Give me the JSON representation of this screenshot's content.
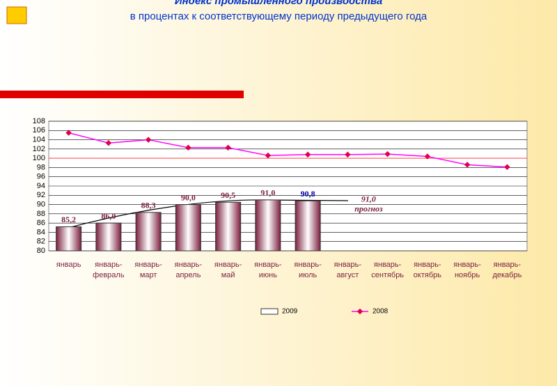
{
  "chart_data": {
    "type": "bar_line",
    "title": "Индекс промышленного производства",
    "subtitle": "в процентах к соответствующему периоду предыдущего года",
    "categories": [
      "январь",
      "январь-февраль",
      "январь-март",
      "январь-апрель",
      "январь-май",
      "январь-июнь",
      "январь-июль",
      "январь-август",
      "январь-сентябрь",
      "январь-октябрь",
      "январь-ноябрь",
      "январь-декабрь"
    ],
    "series": [
      {
        "name": "2009",
        "type": "bar",
        "color": "#7a1f3d",
        "values": [
          85.2,
          86.0,
          88.3,
          90.0,
          90.5,
          91.0,
          90.8,
          null,
          null,
          null,
          null,
          null
        ],
        "value_labels": [
          "85,2",
          "86,0",
          "88,3",
          "90,0",
          "90,5",
          "91,0",
          "90,8",
          null,
          null,
          null,
          null,
          null
        ]
      },
      {
        "name": "2008",
        "type": "line",
        "color": "#ff00ff",
        "values": [
          105.5,
          103.3,
          104.0,
          102.3,
          102.3,
          100.6,
          100.8,
          100.8,
          100.9,
          100.4,
          98.6,
          98.1
        ]
      }
    ],
    "annotation": {
      "value": 91.0,
      "label": "91,0",
      "text": "прогноз"
    },
    "reference_line": 100,
    "ylim": [
      80,
      108
    ],
    "yticks": [
      80,
      82,
      84,
      86,
      88,
      90,
      92,
      94,
      96,
      98,
      100,
      102,
      104,
      106,
      108
    ],
    "grid": true
  }
}
